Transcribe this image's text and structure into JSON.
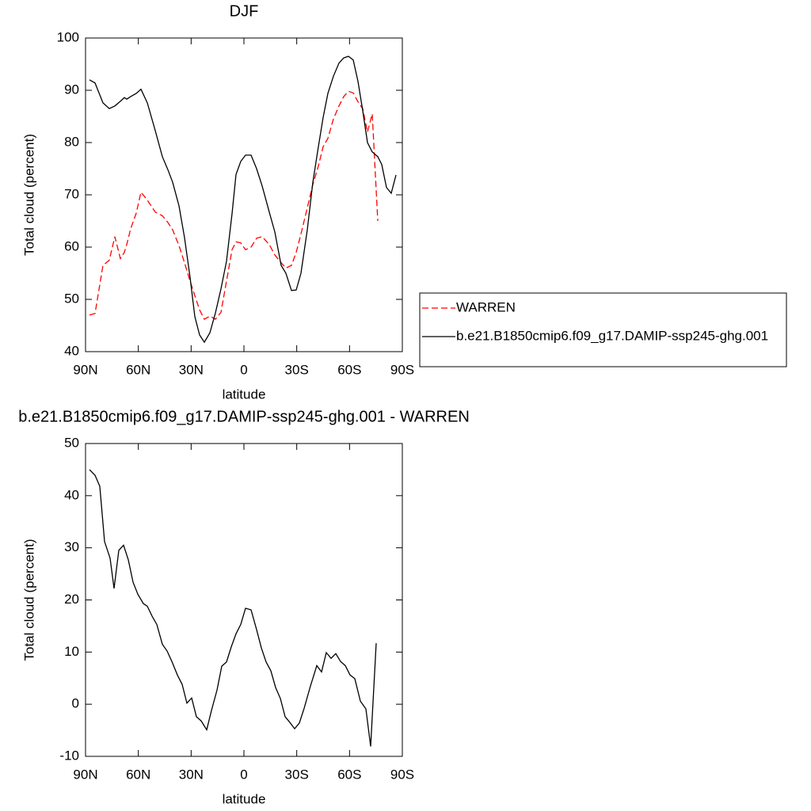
{
  "chart_data": [
    {
      "type": "line",
      "title": "DJF",
      "xlabel": "latitude",
      "ylabel": "Total cloud (percent)",
      "x": [
        87.75,
        84.6,
        80.1,
        76.5,
        73.35,
        70.2,
        67.95,
        66.6,
        64.35,
        61.2,
        58.5,
        54.9,
        50.4,
        46.35,
        43.2,
        40.5,
        36.9,
        33.75,
        30.6,
        27.9,
        25.2,
        22.5,
        19.35,
        16.2,
        13.05,
        9.9,
        6.75,
        4.5,
        1.8,
        -0.9,
        -4.05,
        -7.2,
        -10.35,
        -14.4,
        -17.55,
        -21.15,
        -23.85,
        -27,
        -29.7,
        -32.4,
        -36,
        -39.15,
        -42.3,
        -45,
        -47.7,
        -50.85,
        -54,
        -56.7,
        -59.4,
        -62.1,
        -64.8,
        -67.5,
        -70.2,
        -72.9,
        -76.05,
        -78.3,
        -81,
        -83.7,
        -86.4
      ],
      "series": [
        {
          "name": "WARREN",
          "color": "#ff0000",
          "dash": true,
          "values": [
            47.0,
            47.3,
            56.5,
            57.5,
            62,
            57.8,
            59,
            60.5,
            63.5,
            66.5,
            70.5,
            69,
            66.7,
            66,
            64.7,
            63.3,
            60.3,
            57,
            53.5,
            50.7,
            48,
            46.2,
            46.8,
            46.2,
            47.5,
            53.5,
            59.5,
            61,
            60.8,
            59.5,
            60,
            61.7,
            62,
            60.5,
            58.5,
            57,
            56,
            56.5,
            59,
            62.5,
            67.5,
            72,
            75.5,
            79.2,
            80.8,
            84.5,
            87,
            88.8,
            89.8,
            89.5,
            87.8,
            86.5,
            82,
            85.5,
            65,
            null,
            null,
            null,
            null
          ]
        },
        {
          "name": "b.e21.B1850cmip6.f09_g17.DAMIP-ssp245-ghg.001",
          "color": "#000000",
          "dash": false,
          "values": [
            92.0,
            91.4,
            87.6,
            86.5,
            87.0,
            87.9,
            88.6,
            88.3,
            88.8,
            89.4,
            90.2,
            87.6,
            82.3,
            77.3,
            74.8,
            72.4,
            67.9,
            61.8,
            54.2,
            46.7,
            43.2,
            41.8,
            43.6,
            47.4,
            52.0,
            57.3,
            66.4,
            73.9,
            76.4,
            77.6,
            77.6,
            75.0,
            71.7,
            66.7,
            62.9,
            56.5,
            55.0,
            51.7,
            51.8,
            55.0,
            63.3,
            72.4,
            79.2,
            84.8,
            89.4,
            92.7,
            95.2,
            96.2,
            96.5,
            95.8,
            91.7,
            86.1,
            80.0,
            78.2,
            77.3,
            75.8,
            71.4,
            70.3,
            73.8
          ]
        }
      ],
      "xlim": [
        90,
        -90
      ],
      "xticks": [
        {
          "value": 90,
          "label": "90N"
        },
        {
          "value": 60,
          "label": "60N"
        },
        {
          "value": 30,
          "label": "30N"
        },
        0,
        {
          "value": -30,
          "label": "30S"
        },
        {
          "value": -60,
          "label": "60S"
        },
        {
          "value": -90,
          "label": "90S"
        }
      ],
      "ylim": [
        40,
        100
      ],
      "yticks": [
        40,
        50,
        60,
        70,
        80,
        90,
        100
      ],
      "legend": "right"
    },
    {
      "type": "line",
      "title": "b.e21.B1850cmip6.f09_g17.DAMIP-ssp245-ghg.001 - WARREN",
      "xlabel": "latitude",
      "ylabel": "Total cloud (percent)",
      "x": [
        87.75,
        84.6,
        81.9,
        79.2,
        76.05,
        73.8,
        71.1,
        68.4,
        65.7,
        63,
        60.3,
        57.15,
        54.9,
        52.2,
        49.5,
        46.35,
        43.65,
        40.95,
        37.8,
        35.1,
        32.4,
        29.7,
        27,
        24.3,
        21.15,
        18.45,
        15.3,
        12.6,
        9.9,
        7.2,
        4.5,
        1.8,
        -0.9,
        -4.05,
        -7.2,
        -9.9,
        -12.6,
        -15.3,
        -18,
        -20.7,
        -23.4,
        -26.1,
        -28.8,
        -31.5,
        -34.2,
        -37.8,
        -41.4,
        -44.1,
        -46.8,
        -49.5,
        -52.2,
        -54.9,
        -57.6,
        -60.3,
        -63,
        -66.15,
        -69.3,
        -72,
        -75.15
      ],
      "series": [
        {
          "color": "#000000",
          "dash": false,
          "values": [
            45.0,
            43.9,
            41.8,
            31.2,
            28.0,
            22.2,
            29.5,
            30.5,
            27.7,
            23.4,
            21.1,
            19.3,
            18.8,
            16.9,
            15.3,
            11.5,
            10.2,
            8.2,
            5.6,
            3.8,
            0.2,
            1.2,
            -2.4,
            -3.2,
            -4.9,
            -1.2,
            2.7,
            7.3,
            8.1,
            11.0,
            13.5,
            15.3,
            18.4,
            18.1,
            14.3,
            10.8,
            8.1,
            6.4,
            3.2,
            1.1,
            -2.4,
            -3.5,
            -4.7,
            -3.6,
            -0.8,
            3.5,
            7.4,
            6.2,
            9.9,
            8.8,
            9.7,
            8.2,
            7.4,
            5.6,
            4.9,
            0.6,
            -0.9,
            -8.1,
            11.7
          ]
        }
      ],
      "xlim": [
        90,
        -90
      ],
      "xticks": [
        {
          "value": 90,
          "label": "90N"
        },
        {
          "value": 60,
          "label": "60N"
        },
        {
          "value": 30,
          "label": "30N"
        },
        0,
        {
          "value": -30,
          "label": "30S"
        },
        {
          "value": -60,
          "label": "60S"
        },
        {
          "value": -90,
          "label": "90S"
        }
      ],
      "ylim": [
        -10,
        50
      ],
      "yticks": [
        -10,
        0,
        10,
        20,
        30,
        40,
        50
      ]
    }
  ]
}
